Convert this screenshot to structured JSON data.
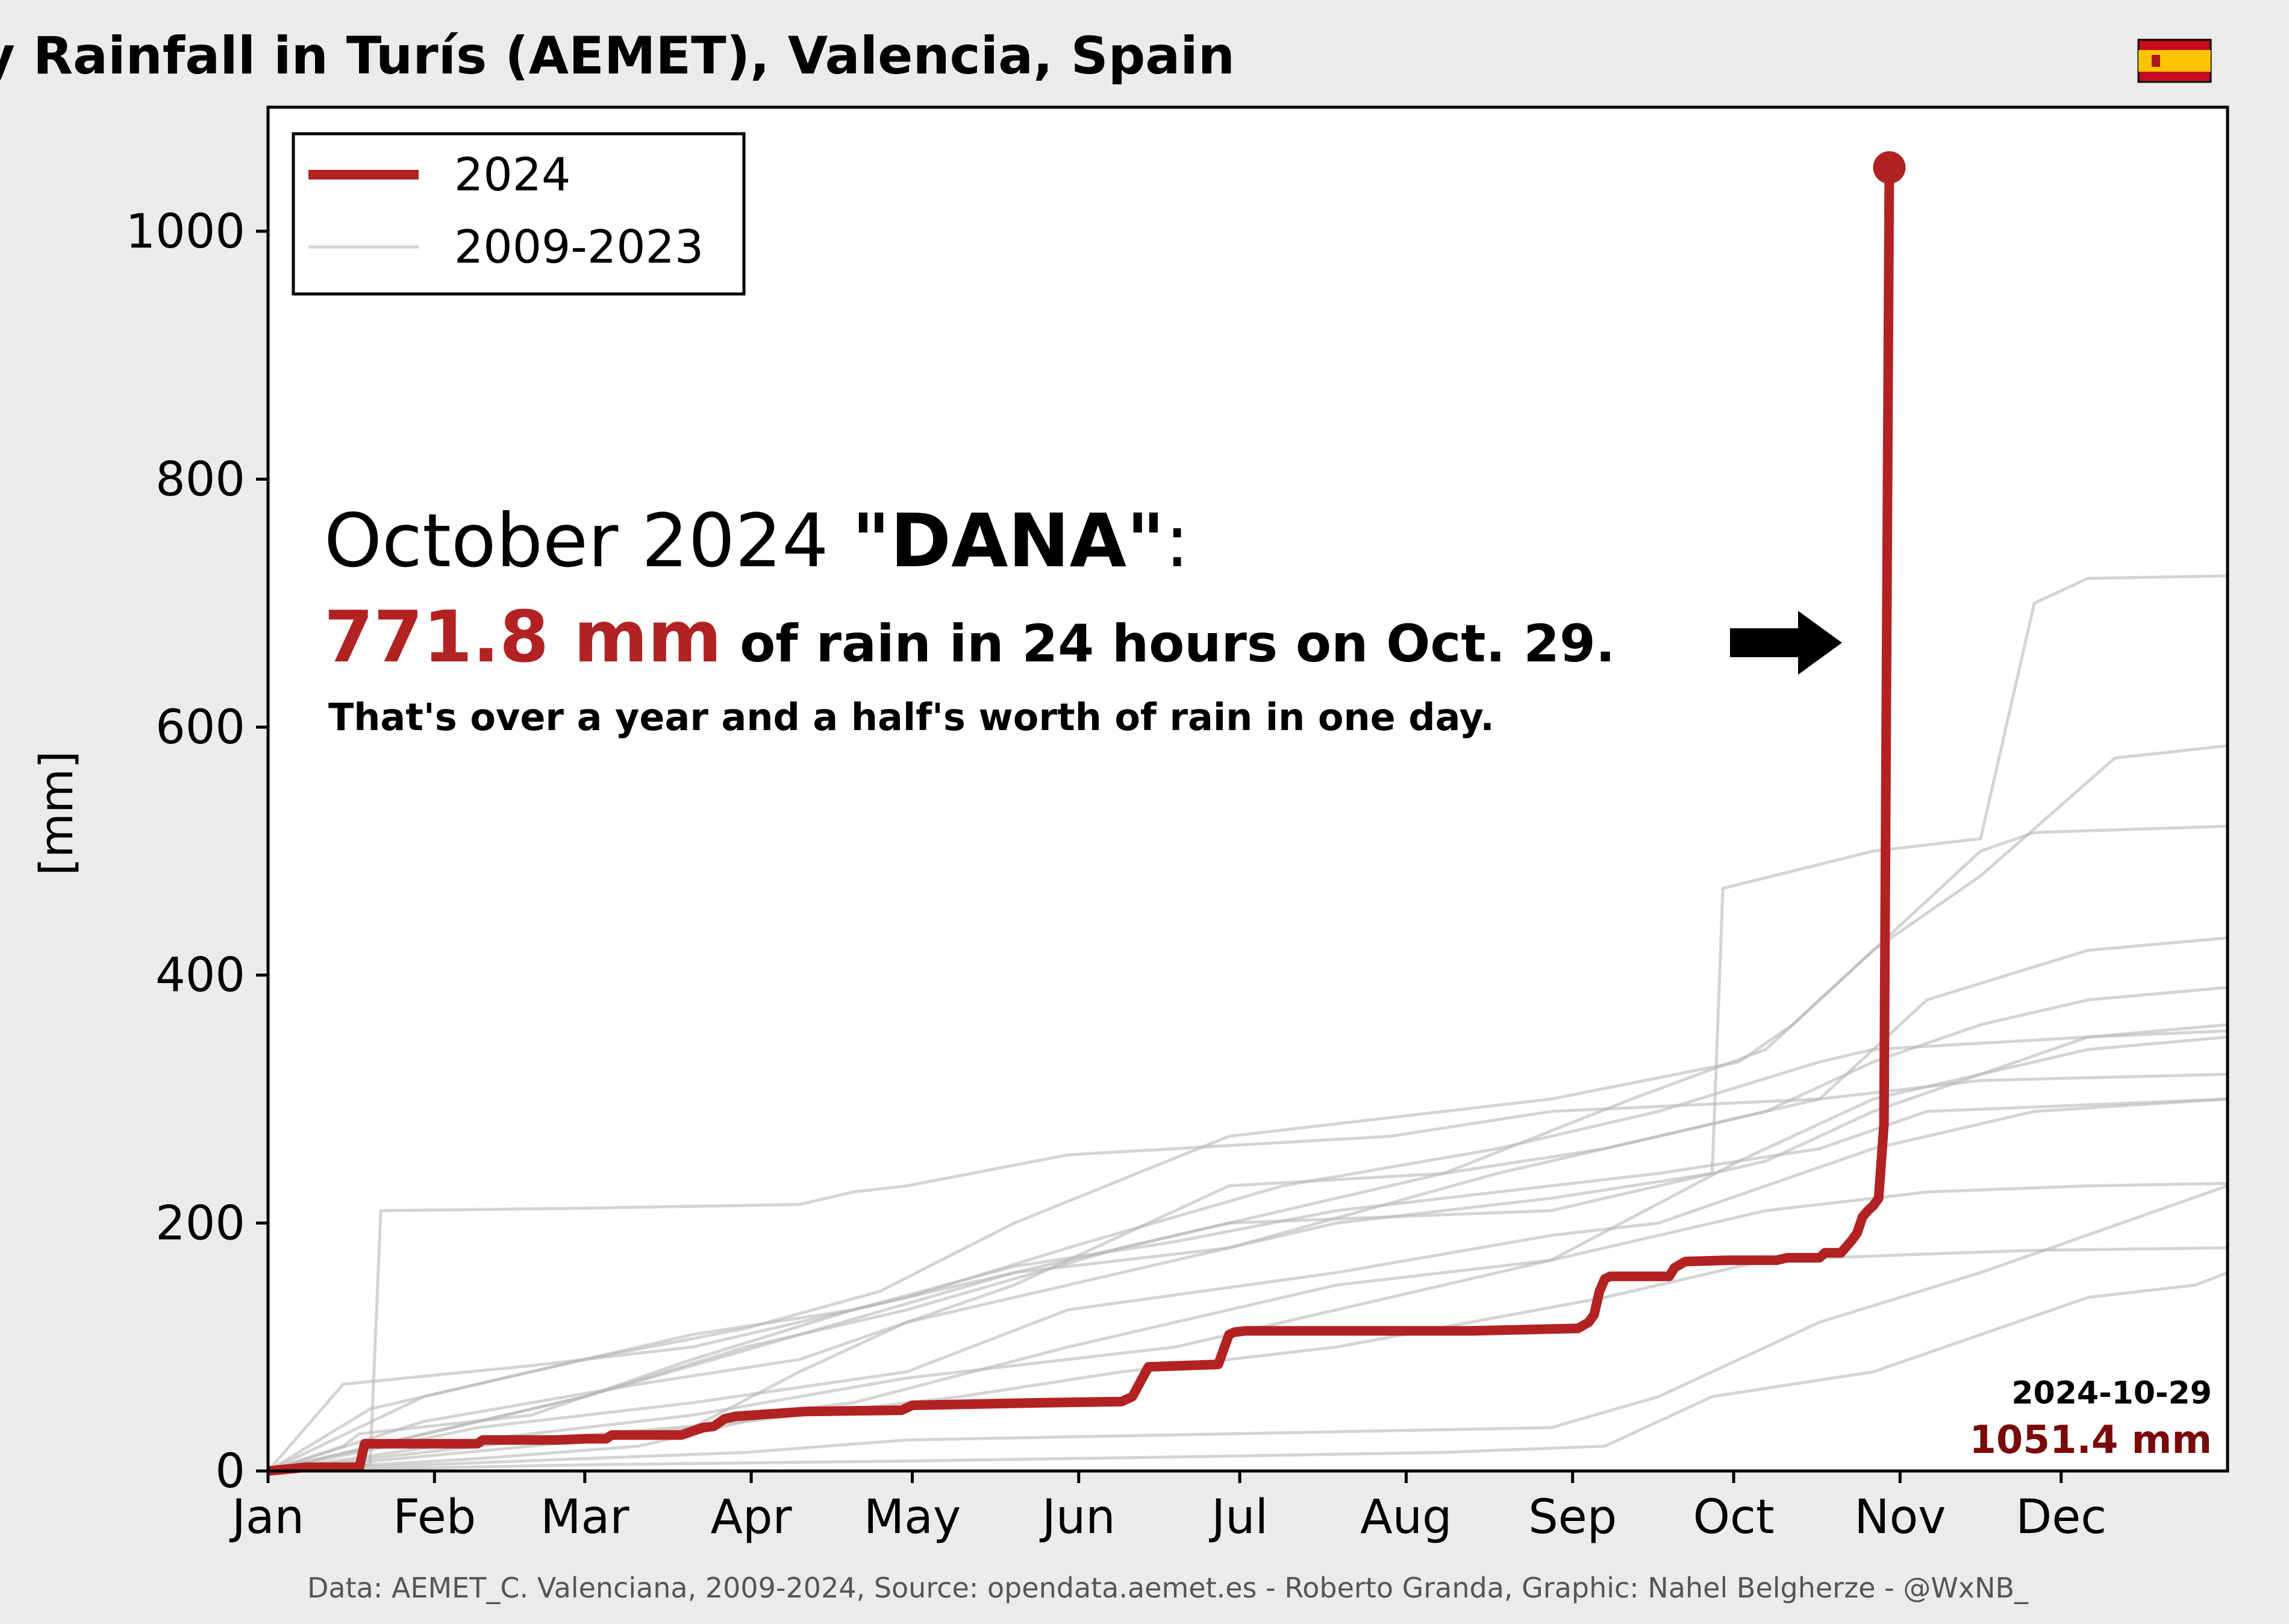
{
  "colors": {
    "background": "#ebebeb",
    "plot_background": "#ffffff",
    "current_year": "#b22222",
    "history": "#b8b8b8",
    "total_value": "#7a0a0a",
    "source_text": "#555555"
  },
  "footer": {
    "source": "Data: AEMET_C. Valenciana, 2009-2024, Source: opendata.aemet.es - Roberto Granda, Graphic: Nahel Belgherze - @WxNB_"
  },
  "annotation": {
    "headline_a": "October 2024 ",
    "headline_b": "\"DANA\"",
    "headline_c": ":",
    "amount": "771.8 mm",
    "amount_rest": " of rain in 24 hours on Oct. 29.",
    "note": "That's over a year and a half's worth of rain in one day.",
    "arrow_icon": "right-arrow"
  },
  "end_label": {
    "date": "2024-10-29",
    "total": "1051.4 mm"
  },
  "flag_icon": "spain-flag",
  "chart_data": {
    "type": "line",
    "title": "Cumulative Daily Rainfall in Turís (AEMET), Valencia, Spain",
    "xlabel": "",
    "ylabel": "[mm]",
    "xlim": [
      1,
      366
    ],
    "ylim": [
      0,
      1100
    ],
    "x_unit": "day of year",
    "x_ticks": [
      "Jan",
      "Feb",
      "Mar",
      "Apr",
      "May",
      "Jun",
      "Jul",
      "Aug",
      "Sep",
      "Oct",
      "Nov",
      "Dec"
    ],
    "x_tick_days": [
      1,
      32,
      60,
      91,
      121,
      152,
      182,
      213,
      244,
      274,
      305,
      335
    ],
    "y_ticks": [
      0,
      200,
      400,
      600,
      800,
      1000
    ],
    "grid": false,
    "legend": {
      "position": "top-left",
      "entries": [
        "2024",
        "2009-2023"
      ]
    },
    "series": [
      {
        "name": "2024",
        "x": [
          1,
          8,
          18,
          19,
          30,
          40,
          41,
          55,
          60,
          64,
          65,
          78,
          82,
          84,
          86,
          88,
          101,
          119,
          121,
          145,
          160,
          162,
          164,
          165,
          178,
          180,
          181,
          183,
          195,
          225,
          245,
          247,
          248,
          249,
          250,
          251,
          262,
          263,
          265,
          273,
          282,
          284,
          290,
          291,
          294,
          296,
          297,
          298,
          299,
          300,
          301,
          302,
          303,
          304
        ],
        "y": [
          0,
          3,
          3,
          22,
          22,
          22,
          25,
          25,
          26,
          26,
          29,
          29,
          35,
          36,
          42,
          44,
          48,
          49,
          53,
          55,
          56,
          60,
          76,
          84,
          86,
          110,
          112,
          113,
          113,
          113,
          115,
          120,
          126,
          145,
          155,
          157,
          157,
          164,
          169,
          170,
          170,
          172,
          172,
          176,
          176,
          186,
          192,
          205,
          210,
          214,
          220,
          279.6,
          1051.4,
          1051.4
        ]
      },
      {
        "name": "2009-2023",
        "lines": [
          {
            "x": [
              1,
              20,
              22,
              60,
              100,
              110,
              120,
              150,
              210,
              240,
              290,
              320,
              366
            ],
            "y": [
              0,
              5,
              210,
              212,
              215,
              225,
              230,
              255,
              270,
              290,
              300,
              315,
              320
            ]
          },
          {
            "x": [
              1,
              15,
              18,
              50,
              80,
              110,
              140,
              170,
              200,
              260,
              290,
              310,
              366
            ],
            "y": [
              0,
              20,
              30,
              45,
              90,
              130,
              165,
              185,
              210,
              240,
              260,
              290,
              300
            ]
          },
          {
            "x": [
              1,
              30,
              60,
              90,
              115,
              140,
              180,
              240,
              275,
              285,
              300,
              320,
              330,
              366
            ],
            "y": [
              0,
              60,
              90,
              115,
              145,
              200,
              270,
              300,
              330,
              360,
              420,
              500,
              515,
              520
            ]
          },
          {
            "x": [
              1,
              50,
              80,
              100,
              120,
              160,
              200,
              240,
              270,
              272,
              300,
              320,
              330,
              340,
              366
            ],
            "y": [
              0,
              20,
              35,
              80,
              120,
              160,
              200,
              220,
              240,
              470,
              500,
              510,
              700,
              720,
              722
            ]
          },
          {
            "x": [
              1,
              40,
              70,
              100,
              110,
              150,
              200,
              240,
              275,
              300,
              340,
              366
            ],
            "y": [
              0,
              10,
              20,
              50,
              55,
              100,
              150,
              170,
              250,
              300,
              340,
              350
            ]
          },
          {
            "x": [
              1,
              60,
              90,
              120,
              160,
              180,
              240,
              280,
              300,
              320,
              340,
              366
            ],
            "y": [
              0,
              60,
              100,
              130,
              180,
              200,
              210,
              250,
              290,
              320,
              350,
              360
            ]
          },
          {
            "x": [
              1,
              30,
              60,
              90,
              120,
              180,
              240,
              260,
              290,
              320,
              366
            ],
            "y": [
              0,
              5,
              10,
              15,
              25,
              30,
              35,
              60,
              120,
              160,
              230
            ]
          },
          {
            "x": [
              1,
              40,
              80,
              120,
              150,
              200,
              240,
              260,
              280,
              300,
              330,
              366
            ],
            "y": [
              0,
              35,
              55,
              80,
              130,
              160,
              190,
              200,
              230,
              260,
              290,
              300
            ]
          },
          {
            "x": [
              1,
              20,
              50,
              80,
              110,
              140,
              180,
              230,
              260,
              290,
              310,
              340,
              366
            ],
            "y": [
              0,
              50,
              80,
              110,
              130,
              160,
              180,
              240,
              270,
              300,
              380,
              420,
              430
            ]
          },
          {
            "x": [
              1,
              60,
              120,
              180,
              220,
              250,
              270,
              300,
              320,
              340,
              360,
              366
            ],
            "y": [
              0,
              5,
              8,
              12,
              15,
              20,
              60,
              80,
              110,
              140,
              150,
              160
            ]
          },
          {
            "x": [
              1,
              30,
              70,
              100,
              140,
              180,
              220,
              250,
              280,
              300,
              320,
              340,
              366
            ],
            "y": [
              0,
              40,
              70,
              90,
              150,
              230,
              240,
              260,
              290,
              330,
              360,
              380,
              390
            ]
          },
          {
            "x": [
              1,
              20,
              50,
              90,
              130,
              160,
              200,
              250,
              280,
              310,
              330,
              366
            ],
            "y": [
              0,
              10,
              25,
              40,
              60,
              80,
              100,
              140,
              170,
              175,
              178,
              180
            ]
          },
          {
            "x": [
              1,
              15,
              50,
              80,
              120,
              150,
              190,
              230,
              260,
              290,
              300,
              340,
              366
            ],
            "y": [
              0,
              70,
              85,
              100,
              140,
              180,
              230,
              260,
              290,
              330,
              340,
              350,
              355
            ]
          },
          {
            "x": [
              1,
              40,
              80,
              120,
              170,
              210,
              250,
              280,
              310,
              340,
              366
            ],
            "y": [
              0,
              25,
              45,
              75,
              100,
              140,
              180,
              210,
              225,
              230,
              232
            ]
          },
          {
            "x": [
              1,
              30,
              60,
              100,
              140,
              180,
              220,
              255,
              280,
              300,
              320,
              345,
              366
            ],
            "y": [
              0,
              30,
              60,
              110,
              160,
              200,
              240,
              300,
              340,
              420,
              480,
              575,
              585
            ]
          }
        ]
      }
    ]
  }
}
